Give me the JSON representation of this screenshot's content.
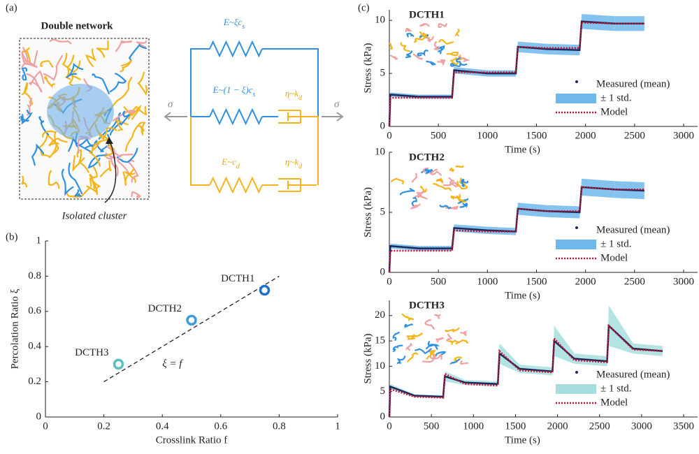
{
  "panel_labels": [
    "(a)",
    "(b)",
    "(c)"
  ],
  "diagram": {
    "title": "Double network",
    "cluster_label": "Isolated cluster",
    "stress_left": "σ",
    "stress_right": "σ",
    "springs": [
      {
        "text": "E~ξc",
        "sub": "s"
      },
      {
        "text": "E~(1 − ξ)c",
        "sub": "s"
      },
      {
        "text": "E~c",
        "sub": "d"
      }
    ],
    "dashpots": [
      {
        "text": "η~k",
        "sub": "d"
      },
      {
        "text": "η~k",
        "sub": "d"
      }
    ]
  },
  "chart_data": [
    {
      "type": "scatter",
      "xlabel": "Crosslink Ratio f",
      "ylabel": "Percolation Ratio ξ",
      "x": [
        0.75,
        0.5,
        0.25
      ],
      "values": [
        0.72,
        0.55,
        0.3
      ],
      "point_labels": [
        "DCTH1",
        "DCTH2",
        "DCTH3"
      ],
      "colors": [
        "#1f6fd1",
        "#3a9be0",
        "#5bbfbf"
      ],
      "fit": {
        "label": "ξ = f",
        "x": [
          0.2,
          0.8
        ],
        "values": [
          0.2,
          0.8
        ]
      },
      "xlim": [
        0,
        1
      ],
      "xticks": [
        0,
        0.2,
        0.4,
        0.6,
        0.8,
        1
      ],
      "ylim": [
        0,
        1
      ],
      "yticks": [
        0,
        0.2,
        0.4,
        0.6,
        0.8,
        1
      ]
    },
    {
      "type": "line",
      "title": "DCTH1",
      "xlabel": "Time (s)",
      "ylabel": "Stress (kPa)",
      "x": [
        0,
        10,
        300,
        640,
        660,
        1000,
        1290,
        1310,
        1600,
        1940,
        1960,
        2300,
        2600
      ],
      "series": [
        {
          "name": "Measured (mean)",
          "color": "#1b2a5a",
          "values": [
            0,
            3.0,
            2.8,
            2.8,
            5.3,
            5.0,
            5.0,
            7.5,
            7.3,
            7.2,
            9.9,
            9.7,
            9.7
          ],
          "error": [
            0,
            0.2,
            0.2,
            0.2,
            0.3,
            0.3,
            0.3,
            0.5,
            0.5,
            0.5,
            0.7,
            0.7,
            0.7
          ],
          "error_name": "± 1 std.",
          "error_color": "#6fb8ea"
        },
        {
          "name": "Model",
          "color": "#c8102e",
          "values": [
            0,
            2.7,
            2.7,
            2.7,
            5.1,
            5.1,
            5.1,
            7.5,
            7.4,
            7.4,
            9.8,
            9.7,
            9.7
          ]
        }
      ],
      "xlim": [
        0,
        3000
      ],
      "xticks": [
        0,
        500,
        1000,
        1500,
        2000,
        2500,
        3000
      ],
      "ylim": [
        0,
        11
      ],
      "yticks": [
        0,
        5,
        10
      ]
    },
    {
      "type": "line",
      "title": "DCTH2",
      "xlabel": "Time (s)",
      "ylabel": "Stress (kPa)",
      "x": [
        0,
        10,
        300,
        640,
        660,
        1000,
        1290,
        1310,
        1600,
        1940,
        1960,
        2300,
        2600
      ],
      "series": [
        {
          "name": "Measured (mean)",
          "color": "#1b2a5a",
          "values": [
            0,
            2.2,
            2.0,
            2.0,
            3.7,
            3.5,
            3.4,
            5.3,
            5.1,
            5.0,
            7.1,
            6.9,
            6.8
          ],
          "error": [
            0,
            0.2,
            0.2,
            0.2,
            0.3,
            0.3,
            0.3,
            0.5,
            0.5,
            0.5,
            0.7,
            0.7,
            0.7
          ],
          "error_name": "± 1 std.",
          "error_color": "#6fb8ea"
        },
        {
          "name": "Model",
          "color": "#c8102e",
          "values": [
            0,
            1.8,
            1.8,
            1.8,
            3.5,
            3.4,
            3.4,
            5.3,
            5.1,
            5.1,
            7.1,
            6.9,
            6.9
          ]
        }
      ],
      "xlim": [
        0,
        3000
      ],
      "xticks": [
        0,
        500,
        1000,
        1500,
        2000,
        2500,
        3000
      ],
      "ylim": [
        0,
        10
      ],
      "yticks": [
        0,
        5,
        10
      ]
    },
    {
      "type": "line",
      "title": "DCTH3",
      "xlabel": "Time (s)",
      "ylabel": "Stress (kPa)",
      "x": [
        0,
        10,
        300,
        640,
        660,
        900,
        1290,
        1310,
        1550,
        1940,
        1960,
        2200,
        2590,
        2610,
        2900,
        3250
      ],
      "series": [
        {
          "name": "Measured (mean)",
          "color": "#1b2a5a",
          "values": [
            0,
            6,
            4.2,
            4,
            8,
            6.8,
            6.5,
            12.5,
            9.5,
            9,
            15,
            11.5,
            11,
            18,
            13.5,
            13
          ],
          "error": [
            0,
            0.5,
            0.3,
            0.3,
            1,
            0.5,
            0.5,
            2,
            0.8,
            0.8,
            3,
            1,
            1,
            4,
            1,
            1
          ],
          "error_name": "± 1 std.",
          "error_color": "#a6dede"
        },
        {
          "name": "Model",
          "color": "#c8102e",
          "values": [
            0,
            5.5,
            4.0,
            3.8,
            8.5,
            6.5,
            6.2,
            13,
            9.2,
            8.8,
            15.5,
            11.2,
            10.8,
            18,
            13.3,
            13
          ]
        }
      ],
      "xlim": [
        0,
        3500
      ],
      "xticks": [
        0,
        500,
        1000,
        1500,
        2000,
        2500,
        3000,
        3500
      ],
      "ylim": [
        0,
        23
      ],
      "yticks": [
        0,
        5,
        10,
        15,
        20
      ]
    }
  ]
}
